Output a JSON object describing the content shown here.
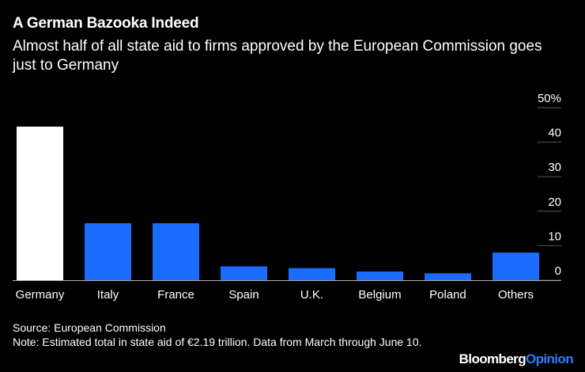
{
  "header": {
    "title": "A German Bazooka Indeed",
    "subtitle": "Almost half of all state aid to firms approved by the European Commission goes just to Germany"
  },
  "chart_data": {
    "type": "bar",
    "title": "A German Bazooka Indeed",
    "subtitle": "Almost half of all state aid to firms approved by the European Commission goes just to Germany",
    "categories": [
      "Germany",
      "Italy",
      "France",
      "Spain",
      "U.K.",
      "Belgium",
      "Poland",
      "Others"
    ],
    "values": [
      44.5,
      16.5,
      16.5,
      4,
      3.5,
      2.5,
      2,
      8
    ],
    "bar_colors": [
      "#ffffff",
      "#1a6cff",
      "#1a6cff",
      "#1a6cff",
      "#1a6cff",
      "#1a6cff",
      "#1a6cff",
      "#1a6cff"
    ],
    "ylim": [
      0,
      50
    ],
    "yticks": [
      0,
      10,
      20,
      30,
      40,
      50
    ],
    "ytick_labels": [
      "0",
      "10",
      "20",
      "30",
      "40",
      "50%"
    ],
    "xlabel": "",
    "ylabel": "",
    "grid": true,
    "axis_side": "right"
  },
  "footer": {
    "source": "Source: European Commission",
    "note": "Note: Estimated total in state aid of €2.19 trillion. Data from March through June 10."
  },
  "brand": {
    "part1": "Bloomberg",
    "part2": "Opinion"
  },
  "colors": {
    "background": "#000000",
    "highlight": "#ffffff",
    "accent": "#1a6cff",
    "grid": "#555555"
  }
}
